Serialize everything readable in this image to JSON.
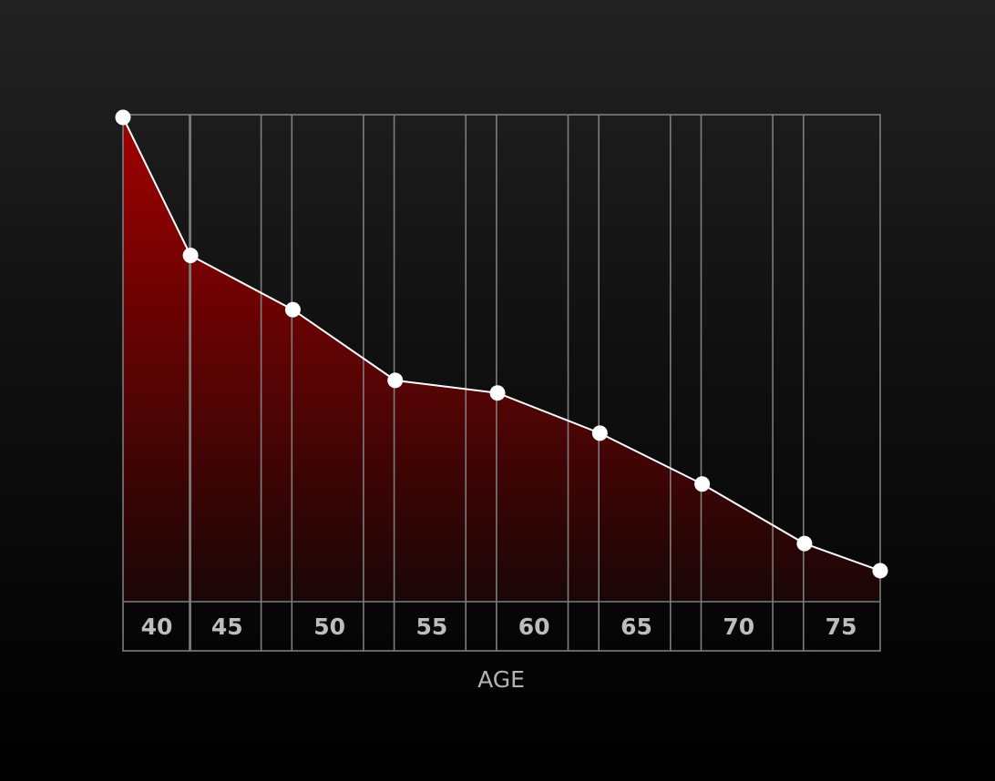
{
  "chart_data": {
    "type": "area",
    "xlabel": "AGE",
    "ylabel": "",
    "title": "",
    "x_ticks": [
      40,
      45,
      50,
      55,
      60,
      65,
      70,
      75
    ],
    "x": [
      40,
      43.3,
      48.3,
      53.3,
      58.3,
      63.3,
      68.3,
      73.3,
      77
    ],
    "values": [
      100,
      71.5,
      60.3,
      45.7,
      43.1,
      34.8,
      24.3,
      12.0,
      6.4
    ],
    "xlim": [
      40,
      77
    ],
    "ylim": [
      0,
      100
    ],
    "grid": true,
    "fill_color_top": "#a00000",
    "fill_color_bottom": "#1a0606",
    "line_color": "#ffffff"
  }
}
